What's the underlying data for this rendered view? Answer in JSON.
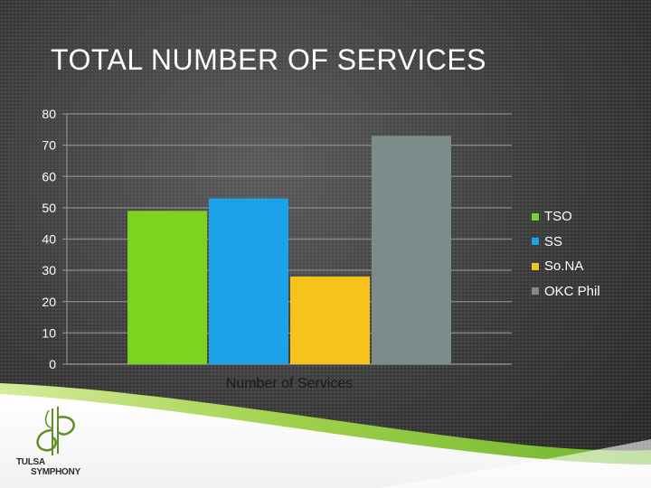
{
  "slide": {
    "title": "TOTAL NUMBER OF SERVICES"
  },
  "logo": {
    "line1": "TULSA",
    "line2": "SYMPHONY"
  },
  "colors": {
    "tso": "#7ed321",
    "ss": "#1aa3e8",
    "sona": "#f7c21a",
    "okc": "#7b8c8a",
    "title": "#ffffff",
    "accent_green": "#8dc63f"
  },
  "chart_data": {
    "type": "bar",
    "title": "",
    "xlabel": "",
    "ylabel": "",
    "categories": [
      "Number of Services"
    ],
    "series": [
      {
        "name": "TSO",
        "values": [
          49
        ]
      },
      {
        "name": "SS",
        "values": [
          53
        ]
      },
      {
        "name": "So.NA",
        "values": [
          28
        ]
      },
      {
        "name": "OKC Phil",
        "values": [
          73
        ]
      }
    ],
    "ylim": [
      0,
      80
    ],
    "yticks": [
      "0",
      "10",
      "20",
      "30",
      "40",
      "50",
      "60",
      "70",
      "80"
    ],
    "grid": true,
    "legend_position": "right"
  }
}
